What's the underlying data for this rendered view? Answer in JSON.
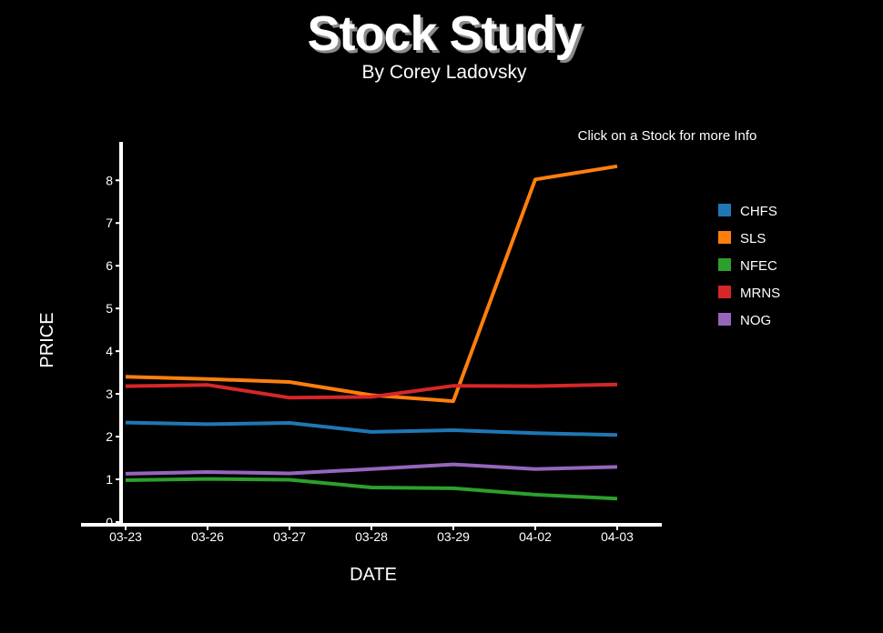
{
  "header": {
    "title": "Stock Study",
    "subtitle": "By Corey Ladovsky"
  },
  "info_text": "Click on a Stock for more Info",
  "chart_data": {
    "type": "line",
    "xlabel": "DATE",
    "ylabel": "PRICE",
    "categories": [
      "03-23",
      "03-26",
      "03-27",
      "03-28",
      "03-29",
      "04-02",
      "04-03"
    ],
    "ylim": [
      0,
      8.9
    ],
    "yticks": [
      0,
      1,
      2,
      3,
      4,
      5,
      6,
      7,
      8
    ],
    "grid": false,
    "legend_position": "right",
    "series": [
      {
        "name": "CHFS",
        "color": "#1f77b4",
        "values": [
          2.33,
          2.29,
          2.32,
          2.11,
          2.15,
          2.08,
          2.04
        ]
      },
      {
        "name": "SLS",
        "color": "#ff7f0e",
        "values": [
          3.4,
          3.35,
          3.28,
          2.97,
          2.83,
          8.02,
          8.33
        ]
      },
      {
        "name": "NFEC",
        "color": "#2ca02c",
        "values": [
          0.98,
          1.01,
          0.99,
          0.81,
          0.79,
          0.64,
          0.55
        ]
      },
      {
        "name": "MRNS",
        "color": "#d62728",
        "values": [
          3.18,
          3.21,
          2.91,
          2.93,
          3.19,
          3.18,
          3.22
        ]
      },
      {
        "name": "NOG",
        "color": "#9467bd",
        "values": [
          1.13,
          1.17,
          1.14,
          1.24,
          1.35,
          1.24,
          1.29
        ]
      }
    ]
  }
}
